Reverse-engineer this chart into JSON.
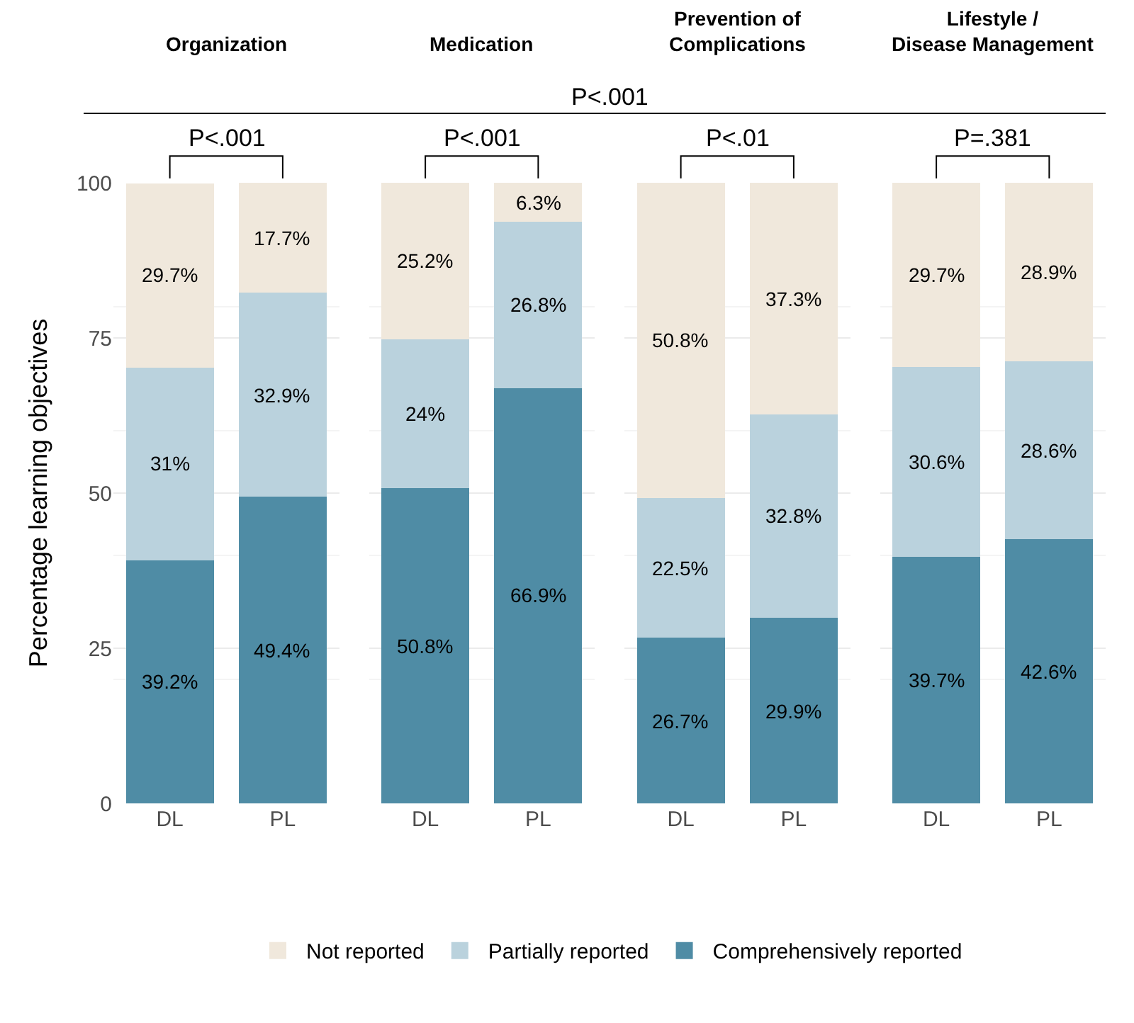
{
  "chart_data": [
    {
      "type": "bar",
      "title": "Organization",
      "categories": [
        "DL",
        "PL"
      ],
      "stacked": true,
      "ylabel": "Percentage learning objectives",
      "ylim": [
        0,
        100
      ],
      "yticks": [
        0,
        25,
        50,
        75,
        100
      ],
      "grid": "y",
      "legend": "bottom",
      "annotations": [
        "P<.001",
        "P<.001"
      ],
      "series": [
        {
          "name": "Comprehensively reported",
          "color": "#4f8ca5",
          "values": [
            39.2,
            49.4
          ],
          "value_labels": [
            "39.2%",
            "49.4%"
          ]
        },
        {
          "name": "Partially reported",
          "color": "#bad2dd",
          "values": [
            31,
            32.9
          ],
          "value_labels": [
            "31%",
            "32.9%"
          ]
        },
        {
          "name": "Not reported",
          "color": "#f0e8dc",
          "values": [
            29.7,
            17.7
          ],
          "value_labels": [
            "29.7%",
            "17.7%"
          ]
        }
      ]
    },
    {
      "type": "bar",
      "title": "Medication",
      "categories": [
        "DL",
        "PL"
      ],
      "stacked": true,
      "ylim": [
        0,
        100
      ],
      "yticks": [
        0,
        25,
        50,
        75,
        100
      ],
      "grid": "y",
      "tick_labels": "x",
      "annotations": [
        "P<.001"
      ],
      "series": [
        {
          "name": "Comprehensively reported",
          "color": "#4f8ca5",
          "values": [
            50.8,
            66.9
          ],
          "value_labels": [
            "50.8%",
            "66.9%"
          ]
        },
        {
          "name": "Partially reported",
          "color": "#bad2dd",
          "values": [
            24,
            26.8
          ],
          "value_labels": [
            "24%",
            "26.8%"
          ]
        },
        {
          "name": "Not reported",
          "color": "#f0e8dc",
          "values": [
            25.2,
            6.3
          ],
          "value_labels": [
            "25.2%",
            "6.3%"
          ]
        }
      ]
    },
    {
      "type": "bar",
      "title": "Prevention of Complications",
      "categories": [
        "DL",
        "PL"
      ],
      "stacked": true,
      "ylim": [
        0,
        100
      ],
      "yticks": [
        0,
        25,
        50,
        75,
        100
      ],
      "grid": "y",
      "tick_labels": "x",
      "annotations": [
        "P<.01"
      ],
      "series": [
        {
          "name": "Comprehensively reported",
          "color": "#4f8ca5",
          "values": [
            26.7,
            29.9
          ],
          "value_labels": [
            "26.7%",
            "29.9%"
          ]
        },
        {
          "name": "Partially reported",
          "color": "#bad2dd",
          "values": [
            22.5,
            32.8
          ],
          "value_labels": [
            "22.5%",
            "32.8%"
          ]
        },
        {
          "name": "Not reported",
          "color": "#f0e8dc",
          "values": [
            50.8,
            37.3
          ],
          "value_labels": [
            "50.8%",
            "37.3%"
          ]
        }
      ]
    },
    {
      "type": "bar",
      "title": "Lifestyle / Disease Management",
      "categories": [
        "DL",
        "PL"
      ],
      "stacked": true,
      "ylim": [
        0,
        100
      ],
      "yticks": [
        0,
        25,
        50,
        75,
        100
      ],
      "grid": "y",
      "tick_labels": "x",
      "annotations": [
        "P=.381"
      ],
      "series": [
        {
          "name": "Comprehensively reported",
          "color": "#4f8ca5",
          "values": [
            39.7,
            42.6
          ],
          "value_labels": [
            "39.7%",
            "42.6%"
          ]
        },
        {
          "name": "Partially reported",
          "color": "#bad2dd",
          "values": [
            30.6,
            28.6
          ],
          "value_labels": [
            "30.6%",
            "28.6%"
          ]
        },
        {
          "name": "Not reported",
          "color": "#f0e8dc",
          "values": [
            29.7,
            28.9
          ],
          "value_labels": [
            "29.7%",
            "28.9%"
          ]
        }
      ]
    }
  ]
}
